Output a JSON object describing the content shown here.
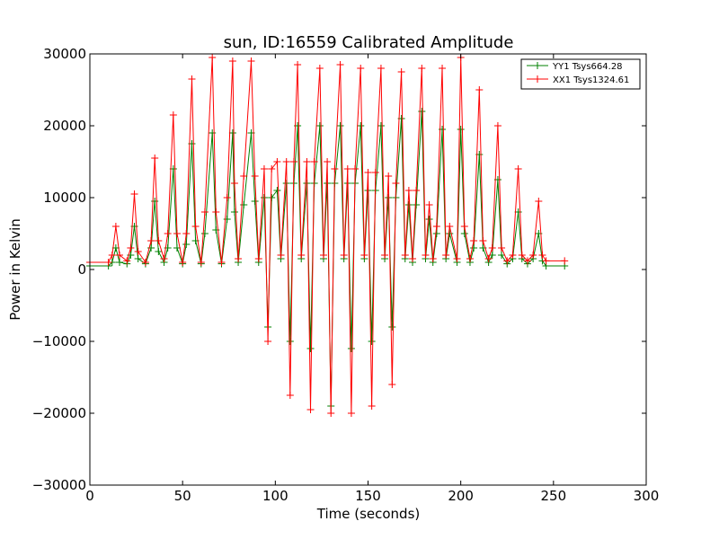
{
  "chart_data": {
    "type": "line",
    "title": "sun, ID:16559 Calibrated Amplitude",
    "xlabel": "Time (seconds)",
    "ylabel": "Power in Kelvin",
    "xlim": [
      0,
      300
    ],
    "ylim": [
      -30000,
      30000
    ],
    "xticks": [
      0,
      50,
      100,
      150,
      200,
      250,
      300
    ],
    "yticks": [
      -30000,
      -20000,
      -10000,
      0,
      10000,
      20000,
      30000
    ],
    "xtick_labels": [
      "0",
      "50",
      "100",
      "150",
      "200",
      "250",
      "300"
    ],
    "ytick_labels": [
      "−30000",
      "−20000",
      "−10000",
      "0",
      "10000",
      "20000",
      "30000"
    ],
    "grid": false,
    "legend_position": "top-right",
    "marker": "+",
    "series": [
      {
        "name": "YY1 Tsys664.28",
        "color": "#008000",
        "points": [
          [
            0,
            500
          ],
          [
            10,
            500
          ],
          [
            12,
            1000
          ],
          [
            14,
            3000
          ],
          [
            16,
            1000
          ],
          [
            20,
            800
          ],
          [
            22,
            2000
          ],
          [
            24,
            6000
          ],
          [
            26,
            1500
          ],
          [
            30,
            800
          ],
          [
            33,
            3000
          ],
          [
            35,
            9500
          ],
          [
            37,
            2500
          ],
          [
            40,
            1000
          ],
          [
            42,
            3000
          ],
          [
            45,
            14000
          ],
          [
            47,
            3000
          ],
          [
            50,
            800
          ],
          [
            52,
            3500
          ],
          [
            55,
            17500
          ],
          [
            57,
            4000
          ],
          [
            60,
            800
          ],
          [
            62,
            5000
          ],
          [
            66,
            19000
          ],
          [
            68,
            5500
          ],
          [
            71,
            800
          ],
          [
            74,
            7000
          ],
          [
            77,
            19000
          ],
          [
            78,
            8000
          ],
          [
            80,
            1000
          ],
          [
            83,
            9000
          ],
          [
            87,
            19000
          ],
          [
            89,
            9500
          ],
          [
            91,
            1000
          ],
          [
            94,
            10000
          ],
          [
            96,
            -8000
          ],
          [
            98,
            10000
          ],
          [
            101,
            11000
          ],
          [
            103,
            1500
          ],
          [
            106,
            12000
          ],
          [
            108,
            -10000
          ],
          [
            110,
            12000
          ],
          [
            112,
            20000
          ],
          [
            114,
            1500
          ],
          [
            117,
            12000
          ],
          [
            119,
            -11000
          ],
          [
            121,
            12000
          ],
          [
            124,
            20000
          ],
          [
            126,
            1500
          ],
          [
            128,
            12000
          ],
          [
            130,
            -19000
          ],
          [
            132,
            12000
          ],
          [
            135,
            20000
          ],
          [
            137,
            1500
          ],
          [
            139,
            12000
          ],
          [
            141,
            -11000
          ],
          [
            143,
            12000
          ],
          [
            146,
            20000
          ],
          [
            148,
            1500
          ],
          [
            150,
            11000
          ],
          [
            152,
            -10000
          ],
          [
            154,
            11000
          ],
          [
            157,
            20000
          ],
          [
            159,
            1500
          ],
          [
            161,
            10000
          ],
          [
            163,
            -8000
          ],
          [
            165,
            10000
          ],
          [
            168,
            21000
          ],
          [
            170,
            1500
          ],
          [
            172,
            9000
          ],
          [
            174,
            1000
          ],
          [
            176,
            9000
          ],
          [
            179,
            22000
          ],
          [
            181,
            1500
          ],
          [
            183,
            7000
          ],
          [
            185,
            1000
          ],
          [
            187,
            5000
          ],
          [
            190,
            19500
          ],
          [
            192,
            1500
          ],
          [
            194,
            5000
          ],
          [
            198,
            1000
          ],
          [
            200,
            19500
          ],
          [
            202,
            5000
          ],
          [
            205,
            1000
          ],
          [
            207,
            3000
          ],
          [
            210,
            16000
          ],
          [
            212,
            3000
          ],
          [
            215,
            1000
          ],
          [
            217,
            2000
          ],
          [
            220,
            12500
          ],
          [
            222,
            2000
          ],
          [
            225,
            800
          ],
          [
            228,
            1500
          ],
          [
            231,
            8000
          ],
          [
            233,
            1500
          ],
          [
            236,
            800
          ],
          [
            239,
            1500
          ],
          [
            242,
            5000
          ],
          [
            244,
            1200
          ],
          [
            246,
            500
          ],
          [
            256,
            500
          ]
        ]
      },
      {
        "name": "XX1 Tsys1324.61",
        "color": "#ff0000",
        "points": [
          [
            0,
            1000
          ],
          [
            10,
            1000
          ],
          [
            12,
            2000
          ],
          [
            14,
            6000
          ],
          [
            16,
            2000
          ],
          [
            20,
            1200
          ],
          [
            22,
            3000
          ],
          [
            24,
            10500
          ],
          [
            26,
            2500
          ],
          [
            30,
            1000
          ],
          [
            33,
            4000
          ],
          [
            35,
            15500
          ],
          [
            37,
            4000
          ],
          [
            40,
            1500
          ],
          [
            42,
            5000
          ],
          [
            45,
            21500
          ],
          [
            47,
            5000
          ],
          [
            50,
            1000
          ],
          [
            52,
            5000
          ],
          [
            55,
            26500
          ],
          [
            57,
            6000
          ],
          [
            60,
            1000
          ],
          [
            62,
            8000
          ],
          [
            66,
            29500
          ],
          [
            68,
            8000
          ],
          [
            71,
            1000
          ],
          [
            74,
            10000
          ],
          [
            77,
            29000
          ],
          [
            78,
            12000
          ],
          [
            80,
            1500
          ],
          [
            83,
            13000
          ],
          [
            87,
            29000
          ],
          [
            89,
            13000
          ],
          [
            91,
            1500
          ],
          [
            94,
            14000
          ],
          [
            96,
            -10000
          ],
          [
            98,
            14000
          ],
          [
            101,
            15000
          ],
          [
            103,
            2000
          ],
          [
            106,
            15000
          ],
          [
            108,
            -17500
          ],
          [
            110,
            15000
          ],
          [
            112,
            28500
          ],
          [
            114,
            2000
          ],
          [
            117,
            15000
          ],
          [
            119,
            -19500
          ],
          [
            121,
            15000
          ],
          [
            124,
            28000
          ],
          [
            126,
            2000
          ],
          [
            128,
            15000
          ],
          [
            130,
            -20000
          ],
          [
            132,
            14000
          ],
          [
            135,
            28500
          ],
          [
            137,
            2000
          ],
          [
            139,
            14000
          ],
          [
            141,
            -20000
          ],
          [
            143,
            14000
          ],
          [
            146,
            28000
          ],
          [
            148,
            2000
          ],
          [
            150,
            13500
          ],
          [
            152,
            -19000
          ],
          [
            154,
            13500
          ],
          [
            157,
            28000
          ],
          [
            159,
            2000
          ],
          [
            161,
            13000
          ],
          [
            163,
            -16000
          ],
          [
            165,
            12000
          ],
          [
            168,
            27500
          ],
          [
            170,
            2000
          ],
          [
            172,
            11000
          ],
          [
            174,
            1500
          ],
          [
            176,
            11000
          ],
          [
            179,
            28000
          ],
          [
            181,
            2000
          ],
          [
            183,
            9000
          ],
          [
            185,
            1500
          ],
          [
            187,
            6000
          ],
          [
            190,
            28000
          ],
          [
            192,
            2000
          ],
          [
            194,
            6000
          ],
          [
            198,
            1500
          ],
          [
            200,
            29500
          ],
          [
            202,
            6000
          ],
          [
            205,
            1500
          ],
          [
            207,
            4000
          ],
          [
            210,
            25000
          ],
          [
            212,
            4000
          ],
          [
            215,
            1500
          ],
          [
            217,
            3000
          ],
          [
            220,
            20000
          ],
          [
            222,
            3000
          ],
          [
            225,
            1200
          ],
          [
            228,
            2000
          ],
          [
            231,
            14000
          ],
          [
            233,
            2000
          ],
          [
            236,
            1200
          ],
          [
            239,
            2000
          ],
          [
            242,
            9500
          ],
          [
            244,
            2000
          ],
          [
            246,
            1200
          ],
          [
            256,
            1200
          ]
        ]
      }
    ]
  }
}
